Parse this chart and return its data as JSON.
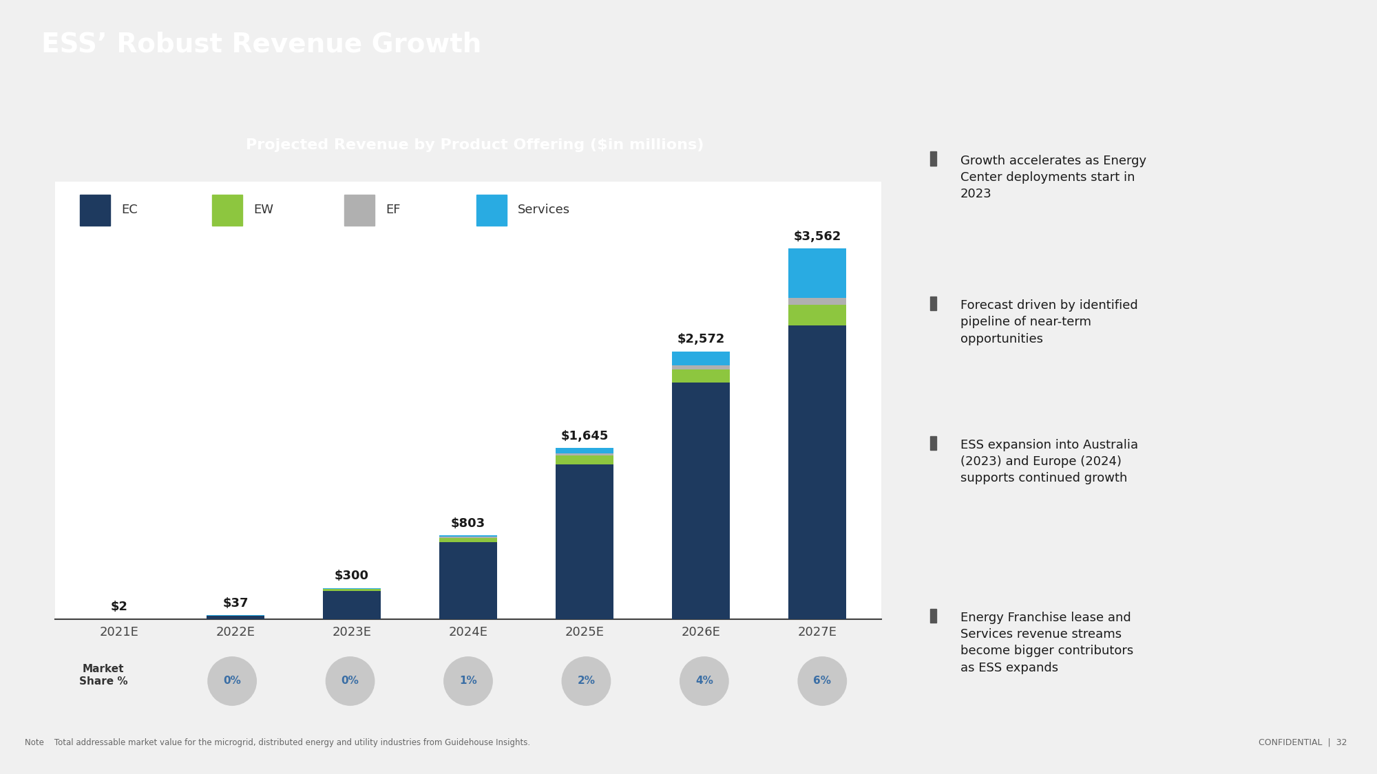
{
  "title": "ESS’ Robust Revenue Growth",
  "chart_title": "Projected Revenue by Product Offering ($in millions)",
  "categories": [
    "2021E",
    "2022E",
    "2023E",
    "2024E",
    "2025E",
    "2026E",
    "2027E"
  ],
  "totals": [
    2,
    37,
    300,
    803,
    1645,
    2572,
    3562
  ],
  "total_labels": [
    "$2",
    "$37",
    "$300",
    "$803",
    "$1,645",
    "$2,572",
    "$3,562"
  ],
  "ec_values": [
    2,
    35,
    272,
    740,
    1490,
    2270,
    2820
  ],
  "ew_values": [
    0,
    1,
    18,
    40,
    80,
    130,
    200
  ],
  "ef_values": [
    0,
    0,
    4,
    10,
    20,
    40,
    65
  ],
  "services_values": [
    0,
    1,
    6,
    13,
    55,
    132,
    477
  ],
  "color_EC": "#1e3a5f",
  "color_EW": "#8dc63f",
  "color_EF": "#b0b0b0",
  "color_Services": "#29abe2",
  "color_header": "#00b0cc",
  "color_chart_title_bg": "#7f7f7f",
  "color_market_circle": "#c8c8c8",
  "color_market_text": "#3a6ea5",
  "market_share_values": [
    "0%",
    "0%",
    "1%",
    "2%",
    "4%",
    "6%"
  ],
  "market_share_label": "Market\nShare %",
  "bullet_points": [
    "Growth accelerates as Energy\nCenter deployments start in\n2023",
    "Forecast driven by identified\npipeline of near-term\nopportunities",
    "ESS expansion into Australia\n(2023) and Europe (2024)\nsupports continued growth",
    "Energy Franchise lease and\nServices revenue streams\nbecome bigger contributors\nas ESS expands"
  ],
  "note_text": "Note    Total addressable market value for the microgrid, distributed energy and utility industries from Guidehouse Insights.",
  "confidential_text": "CONFIDENTIAL  |  32",
  "ylim_max": 4200,
  "slide_bg": "#f0f0f0"
}
